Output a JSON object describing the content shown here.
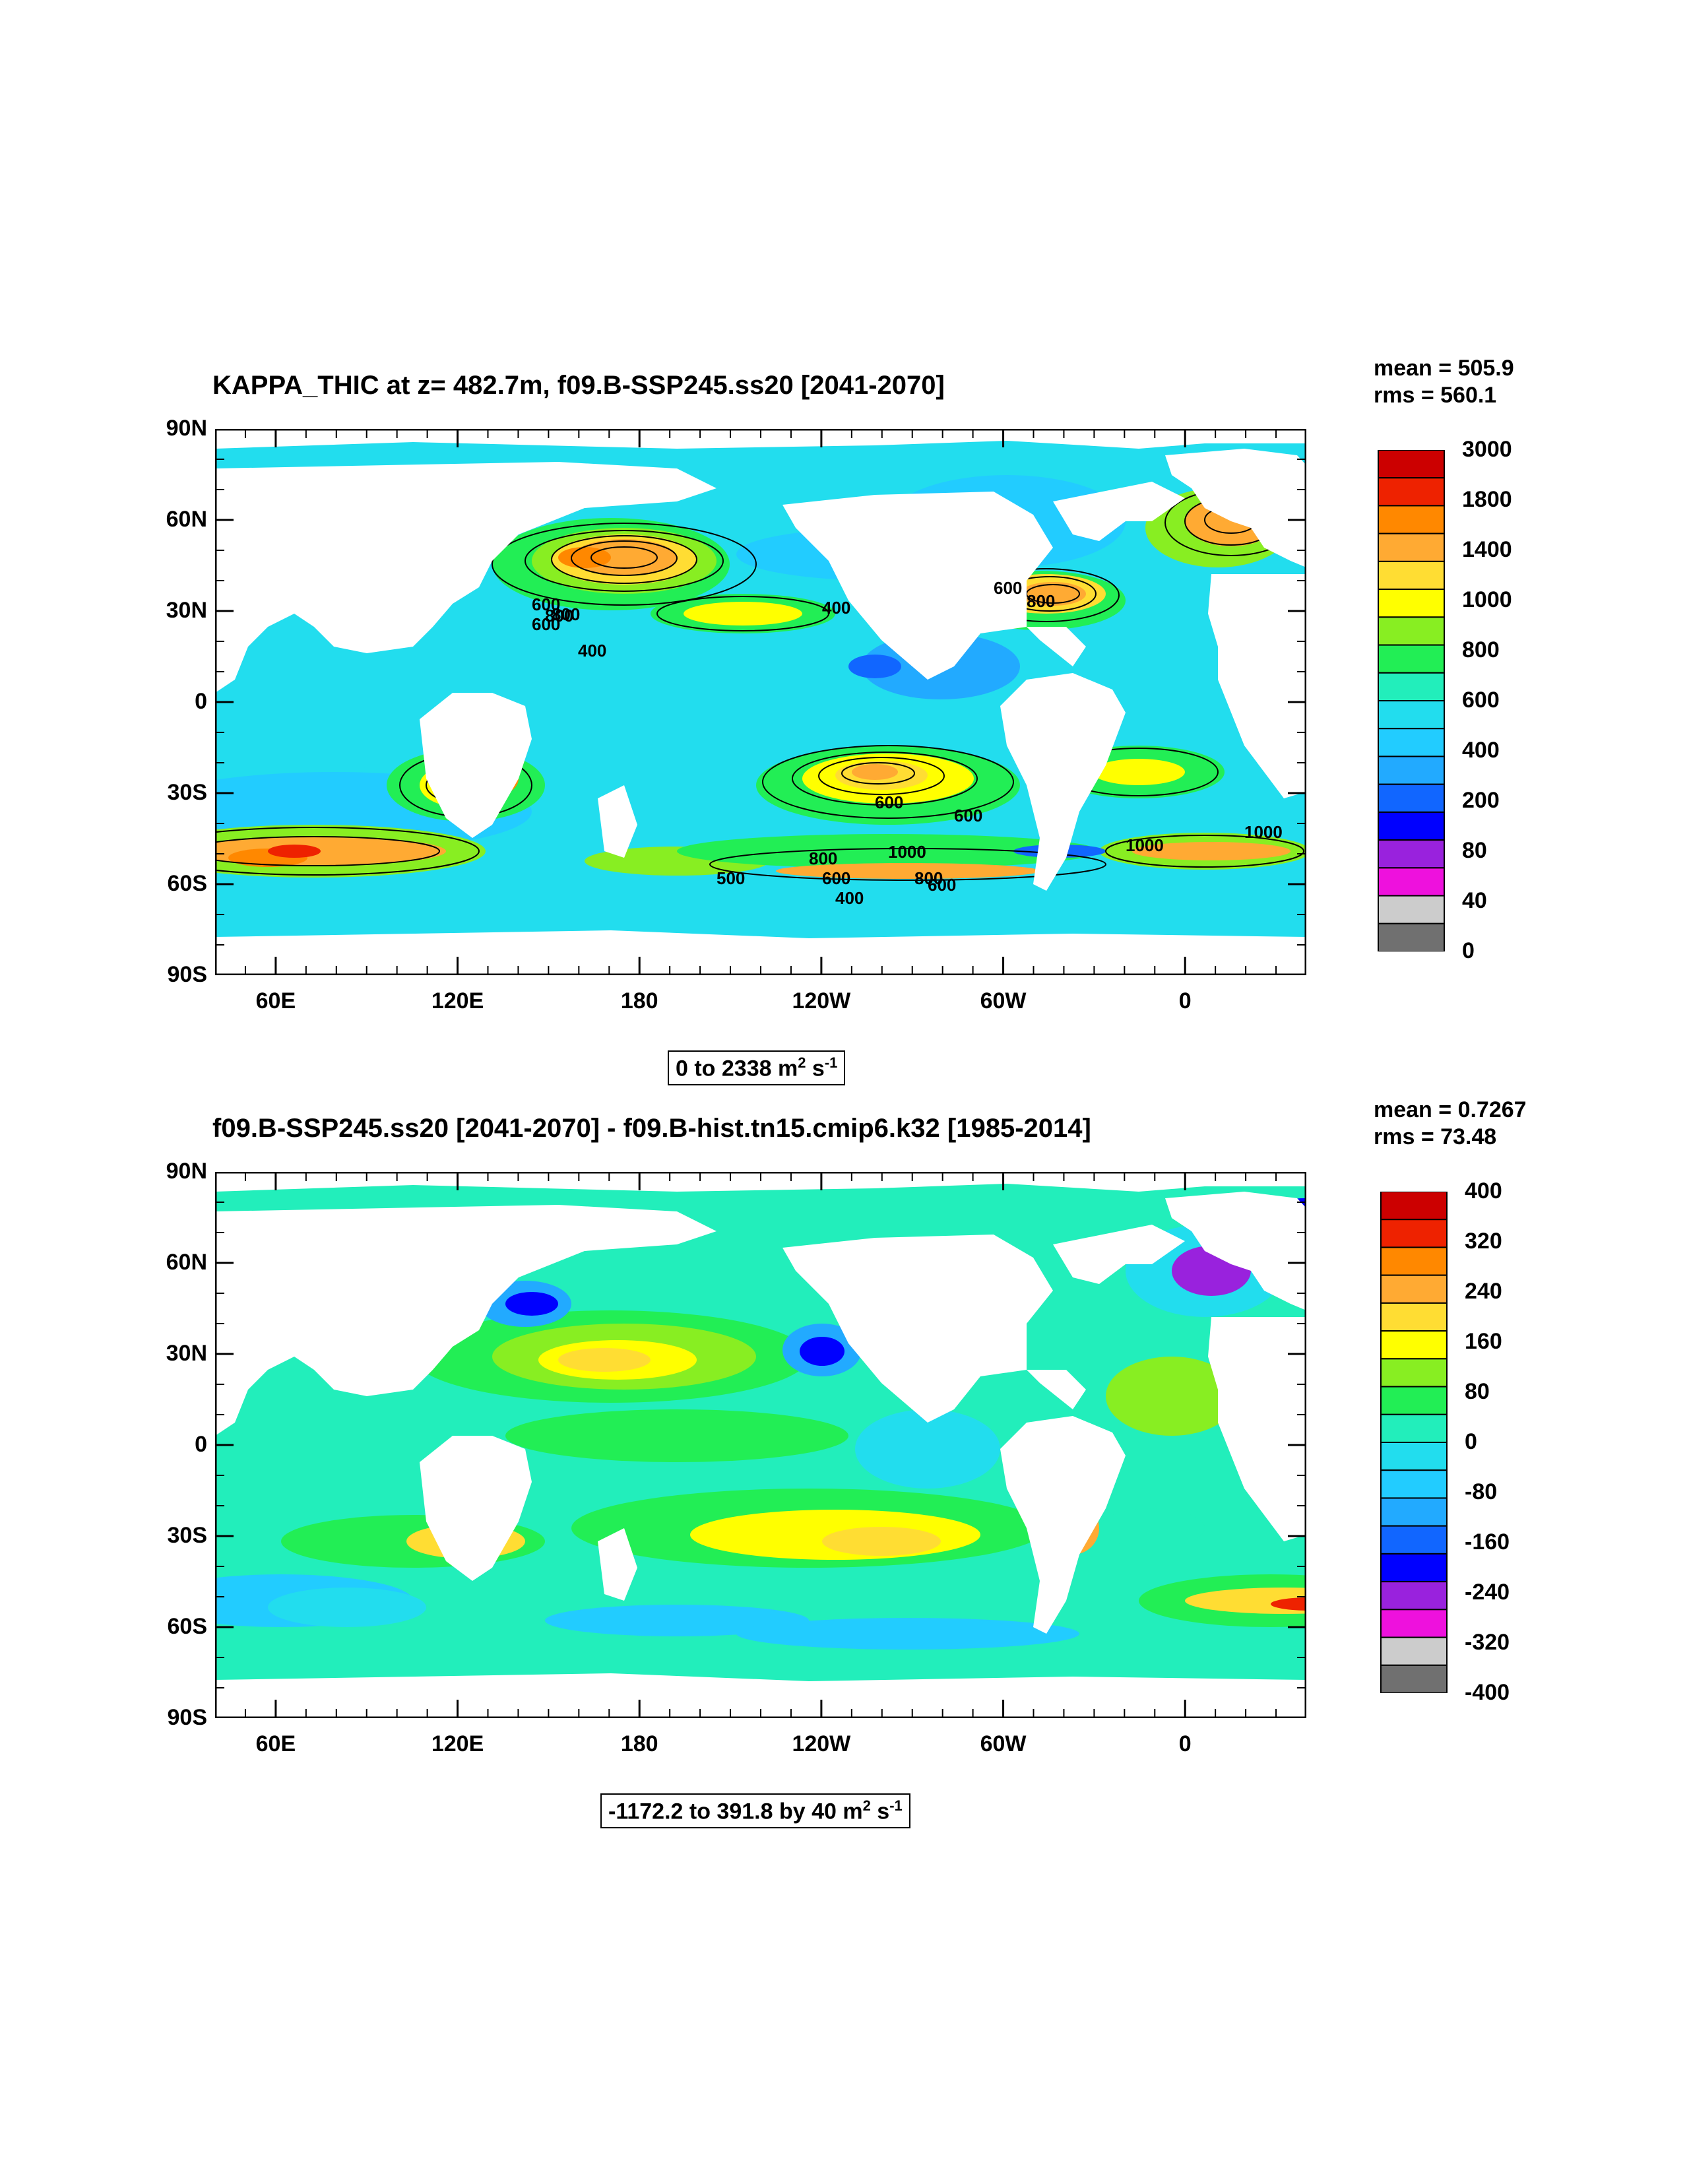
{
  "panel1": {
    "title": "KAPPA_THIC at z= 482.7m, f09.B-SSP245.ss20 [2041-2070]",
    "mean": "mean = 505.9",
    "rms": "rms = 560.1",
    "range_text": "0 to 2338 m",
    "range_sup1": "2",
    "range_mid": " s",
    "range_sup2": "-1",
    "colorbar_labels": [
      "3000",
      "1800",
      "1400",
      "1000",
      "800",
      "600",
      "400",
      "200",
      "80",
      "40",
      "0"
    ],
    "colors": [
      "#cc0000",
      "#ee2200",
      "#ff8800",
      "#ffaa33",
      "#ffdd33",
      "#ffff00",
      "#88ee22",
      "#22ee55",
      "#22eebb",
      "#22ddee",
      "#22ccff",
      "#22aaff",
      "#1166ff",
      "#0000ff",
      "#9922dd",
      "#ee11dd",
      "#cccccc",
      "#707070"
    ],
    "contour_labels": [
      "600",
      "800",
      "800",
      "600",
      "400",
      "400",
      "600",
      "800",
      "1000",
      "800",
      "600",
      "500",
      "600",
      "1000",
      "600",
      "800",
      "600",
      "400",
      "1000"
    ]
  },
  "panel2": {
    "title": "f09.B-SSP245.ss20 [2041-2070] - f09.B-hist.tn15.cmip6.k32 [1985-2014]",
    "mean": "mean = 0.7267",
    "rms": "rms = 73.48",
    "range_text": "-1172.2 to 391.8 by 40 m",
    "range_sup1": "2",
    "range_mid": " s",
    "range_sup2": "-1",
    "colorbar_labels": [
      "400",
      "320",
      "240",
      "160",
      "80",
      "0",
      "-80",
      "-160",
      "-240",
      "-320",
      "-400"
    ]
  },
  "axes": {
    "lat_labels": [
      "90N",
      "60N",
      "30N",
      "0",
      "30S",
      "60S",
      "90S"
    ],
    "lon_labels": [
      "60E",
      "120E",
      "180",
      "120W",
      "60W",
      "0"
    ]
  }
}
